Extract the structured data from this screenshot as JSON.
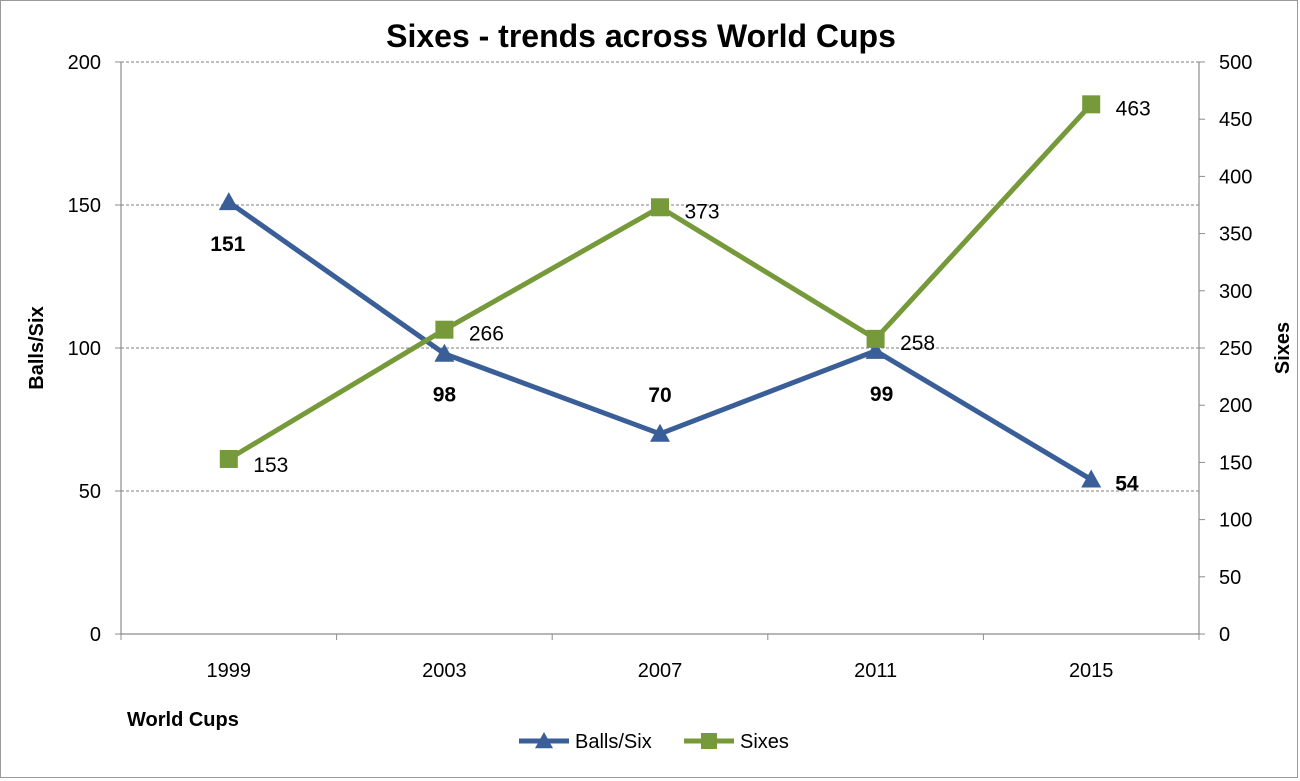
{
  "chart_data": {
    "type": "line",
    "title": "Sixes - trends across World Cups",
    "xlabel": "World Cups",
    "ylabel": "Balls/Six",
    "y2label": "Sixes",
    "categories": [
      "1999",
      "2003",
      "2007",
      "2011",
      "2015"
    ],
    "ylim": [
      0,
      200
    ],
    "y_ticks": [
      "0",
      "50",
      "100",
      "150",
      "200"
    ],
    "y2lim": [
      0,
      500
    ],
    "y2_ticks": [
      "0",
      "50",
      "100",
      "150",
      "200",
      "250",
      "300",
      "350",
      "400",
      "450",
      "500"
    ],
    "grid": "horizontal dashed at left-axis ticks",
    "legend_position": "bottom",
    "series": [
      {
        "name": "Balls/Six",
        "axis": "left",
        "marker": "triangle",
        "color": "#3A5F98",
        "values": [
          151,
          98,
          70,
          99,
          54
        ],
        "labels": [
          "151",
          "98",
          "70",
          "99",
          "54"
        ]
      },
      {
        "name": "Sixes",
        "axis": "right",
        "marker": "square",
        "color": "#76993A",
        "values": [
          153,
          266,
          373,
          258,
          463
        ],
        "labels": [
          "153",
          "266",
          "373",
          "258",
          "463"
        ]
      }
    ]
  }
}
